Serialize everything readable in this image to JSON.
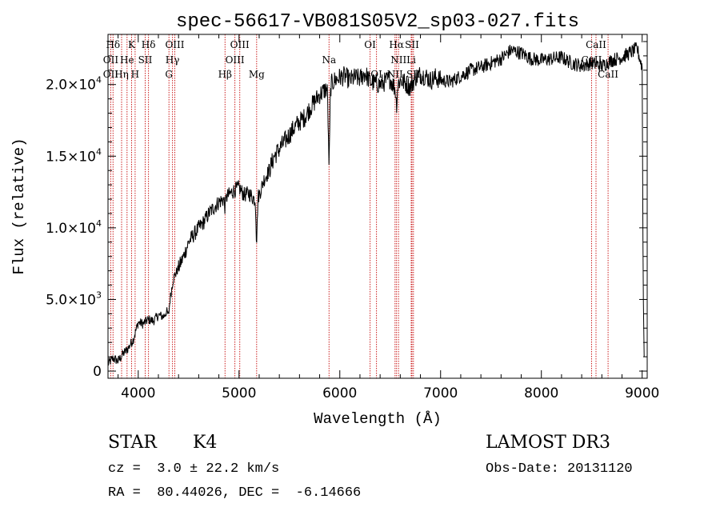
{
  "chart_data": {
    "type": "line",
    "title": "spec-56617-VB081S05V2_sp03-027.fits",
    "xlabel": "Wavelength (Å)",
    "ylabel": "Flux (relative)",
    "xlim": [
      3700,
      9050
    ],
    "ylim": [
      -500,
      23500
    ],
    "x_ticks": [
      4000,
      5000,
      6000,
      7000,
      8000,
      9000
    ],
    "y_ticks": [
      {
        "value": 0,
        "mantissa": "0",
        "exponent": ""
      },
      {
        "value": 5000,
        "mantissa": "5.0×10",
        "exponent": "3"
      },
      {
        "value": 10000,
        "mantissa": "1.0×10",
        "exponent": "4"
      },
      {
        "value": 15000,
        "mantissa": "1.5×10",
        "exponent": "4"
      },
      {
        "value": 20000,
        "mantissa": "2.0×10",
        "exponent": "4"
      }
    ],
    "spectrum_anchor_points": [
      [
        3700,
        500
      ],
      [
        3750,
        900
      ],
      [
        3800,
        700
      ],
      [
        3850,
        1200
      ],
      [
        3900,
        1600
      ],
      [
        3950,
        2200
      ],
      [
        4000,
        3400
      ],
      [
        4050,
        3300
      ],
      [
        4100,
        3600
      ],
      [
        4150,
        3500
      ],
      [
        4200,
        3900
      ],
      [
        4250,
        3800
      ],
      [
        4300,
        4400
      ],
      [
        4350,
        6500
      ],
      [
        4400,
        7200
      ],
      [
        4450,
        8000
      ],
      [
        4500,
        9000
      ],
      [
        4550,
        9500
      ],
      [
        4600,
        10000
      ],
      [
        4650,
        10400
      ],
      [
        4700,
        11000
      ],
      [
        4750,
        11400
      ],
      [
        4800,
        11800
      ],
      [
        4850,
        12000
      ],
      [
        4900,
        12300
      ],
      [
        4950,
        12600
      ],
      [
        5000,
        12800
      ],
      [
        5050,
        12300
      ],
      [
        5100,
        12400
      ],
      [
        5150,
        12000
      ],
      [
        5200,
        12300
      ],
      [
        5250,
        13400
      ],
      [
        5300,
        14000
      ],
      [
        5350,
        15000
      ],
      [
        5400,
        15500
      ],
      [
        5450,
        16000
      ],
      [
        5500,
        16500
      ],
      [
        5550,
        17000
      ],
      [
        5600,
        17400
      ],
      [
        5650,
        17700
      ],
      [
        5700,
        18300
      ],
      [
        5750,
        18800
      ],
      [
        5800,
        19300
      ],
      [
        5850,
        19600
      ],
      [
        5900,
        19900
      ],
      [
        5950,
        20300
      ],
      [
        6000,
        20500
      ],
      [
        6050,
        20600
      ],
      [
        6100,
        20300
      ],
      [
        6150,
        20500
      ],
      [
        6200,
        20400
      ],
      [
        6250,
        20800
      ],
      [
        6300,
        20200
      ],
      [
        6350,
        20100
      ],
      [
        6400,
        20000
      ],
      [
        6450,
        20200
      ],
      [
        6500,
        20400
      ],
      [
        6550,
        19700
      ],
      [
        6600,
        20300
      ],
      [
        6650,
        20100
      ],
      [
        6700,
        19800
      ],
      [
        6750,
        20500
      ],
      [
        6800,
        20700
      ],
      [
        6850,
        20600
      ],
      [
        6900,
        20300
      ],
      [
        6950,
        20500
      ],
      [
        7000,
        20300
      ],
      [
        7100,
        20200
      ],
      [
        7200,
        20600
      ],
      [
        7300,
        21000
      ],
      [
        7400,
        21200
      ],
      [
        7500,
        21500
      ],
      [
        7600,
        21800
      ],
      [
        7700,
        22400
      ],
      [
        7800,
        22200
      ],
      [
        7900,
        21800
      ],
      [
        8000,
        21700
      ],
      [
        8100,
        21800
      ],
      [
        8200,
        21900
      ],
      [
        8300,
        21500
      ],
      [
        8400,
        21300
      ],
      [
        8500,
        21500
      ],
      [
        8600,
        21300
      ],
      [
        8700,
        21700
      ],
      [
        8800,
        21900
      ],
      [
        8900,
        22300
      ],
      [
        8950,
        22500
      ],
      [
        9000,
        21200
      ],
      [
        9010,
        6000
      ],
      [
        9020,
        1000
      ]
    ],
    "absorption_features": [
      {
        "wavelength": 5893,
        "depth": 5200,
        "width": 10
      },
      {
        "wavelength": 5175,
        "depth": 3000,
        "width": 8
      },
      {
        "wavelength": 4861,
        "depth": 600,
        "width": 8
      },
      {
        "wavelength": 6563,
        "depth": 1200,
        "width": 8
      },
      {
        "wavelength": 4300,
        "depth": 500,
        "width": 12
      }
    ],
    "line_markers": [
      {
        "label": "Hδ",
        "wavelength": 3750,
        "row": 0
      },
      {
        "label": "K",
        "wavelength": 3934,
        "row": 0
      },
      {
        "label": "Hδ",
        "wavelength": 4102,
        "row": 0
      },
      {
        "label": "OIII",
        "wavelength": 4363,
        "row": 0
      },
      {
        "label": "OIII",
        "wavelength": 5007,
        "row": 0
      },
      {
        "label": "OI",
        "wavelength": 6300,
        "row": 0
      },
      {
        "label": "Hα",
        "wavelength": 6563,
        "row": 0
      },
      {
        "label": "SII",
        "wavelength": 6716,
        "row": 0
      },
      {
        "label": "CaII",
        "wavelength": 8542,
        "row": 0
      },
      {
        "label": "OII",
        "wavelength": 3727,
        "row": 1
      },
      {
        "label": "He",
        "wavelength": 3889,
        "row": 1
      },
      {
        "label": "SII",
        "wavelength": 4069,
        "row": 1
      },
      {
        "label": "Hγ",
        "wavelength": 4340,
        "row": 1
      },
      {
        "label": "OIII",
        "wavelength": 4959,
        "row": 1
      },
      {
        "label": "Na",
        "wavelength": 5893,
        "row": 1
      },
      {
        "label": "NII",
        "wavelength": 6583,
        "row": 1
      },
      {
        "label": "Li",
        "wavelength": 6708,
        "row": 1
      },
      {
        "label": "CaII",
        "wavelength": 8498,
        "row": 1
      },
      {
        "label": "OII",
        "wavelength": 3727,
        "row": 2
      },
      {
        "label": "Hη",
        "wavelength": 3835,
        "row": 2
      },
      {
        "label": "H",
        "wavelength": 3969,
        "row": 2
      },
      {
        "label": "G",
        "wavelength": 4305,
        "row": 2
      },
      {
        "label": "Hβ",
        "wavelength": 4861,
        "row": 2
      },
      {
        "label": "Mg",
        "wavelength": 5175,
        "row": 2
      },
      {
        "label": "OI",
        "wavelength": 6364,
        "row": 2
      },
      {
        "label": "NII",
        "wavelength": 6548,
        "row": 2
      },
      {
        "label": "SII",
        "wavelength": 6731,
        "row": 2
      },
      {
        "label": "CaII",
        "wavelength": 8662,
        "row": 2
      }
    ],
    "marker_lines": [
      3727,
      3750,
      3835,
      3889,
      3934,
      3969,
      4069,
      4102,
      4305,
      4340,
      4363,
      4861,
      4959,
      5007,
      5175,
      5893,
      6300,
      6364,
      6548,
      6563,
      6583,
      6708,
      6716,
      6731,
      8498,
      8542,
      8662
    ]
  },
  "info": {
    "object_class": "STAR",
    "subclass": "K4",
    "redshift": "cz =  3.0 ± 22.2 km/s",
    "coordinates": "RA =  80.44026, DEC =  -6.14666",
    "survey": "LAMOST DR3",
    "obs_date": "Obs-Date: 20131120"
  },
  "colors": {
    "spectrum": "#000000",
    "marker_line": "#cc2222",
    "axes": "#000000",
    "background": "#ffffff"
  }
}
